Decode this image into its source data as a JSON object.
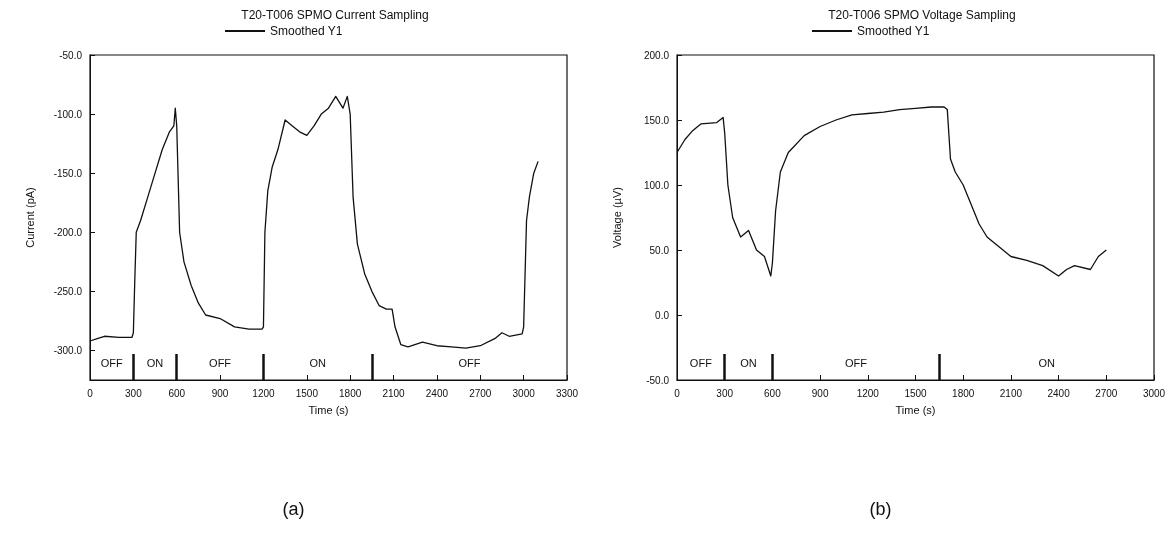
{
  "chart_data": [
    {
      "type": "line",
      "title": "T20-T006 SPMO Current Sampling",
      "xlabel": "Time (s)",
      "ylabel": "Current (pA)",
      "legend": "top",
      "grid": false,
      "marker": "none",
      "line_style": "solid",
      "xlim": [
        0,
        3300
      ],
      "xticks": [
        0,
        300,
        600,
        900,
        1200,
        1500,
        1800,
        2100,
        2400,
        2700,
        3000,
        3300
      ],
      "ylim": [
        -325,
        -50
      ],
      "yticks": [
        {
          "value": -50,
          "label": "-50.0"
        },
        {
          "value": -100,
          "label": "-100.0"
        },
        {
          "value": -150,
          "label": "-150.0"
        },
        {
          "value": -200,
          "label": "-200.0"
        },
        {
          "value": -250,
          "label": "-250.0"
        },
        {
          "value": -300,
          "label": "-300.0"
        }
      ],
      "series": [
        {
          "name": "Smoothed Y1",
          "color": "#111111",
          "x": [
            0,
            50,
            100,
            200,
            290,
            300,
            310,
            320,
            350,
            400,
            450,
            500,
            550,
            580,
            590,
            600,
            620,
            650,
            700,
            750,
            800,
            900,
            1000,
            1100,
            1190,
            1200,
            1210,
            1230,
            1260,
            1300,
            1350,
            1400,
            1450,
            1500,
            1550,
            1600,
            1650,
            1700,
            1750,
            1780,
            1800,
            1820,
            1850,
            1900,
            1950,
            2000,
            2050,
            2090,
            2110,
            2150,
            2200,
            2300,
            2400,
            2500,
            2600,
            2700,
            2800,
            2850,
            2900,
            2990,
            3000,
            3020,
            3040,
            3070,
            3100
          ],
          "values": [
            -292,
            -290,
            -288,
            -289,
            -289,
            -285,
            -240,
            -200,
            -190,
            -170,
            -150,
            -130,
            -115,
            -110,
            -95,
            -110,
            -200,
            -225,
            -245,
            -260,
            -270,
            -273,
            -280,
            -282,
            -282,
            -280,
            -200,
            -165,
            -145,
            -130,
            -105,
            -110,
            -115,
            -118,
            -110,
            -100,
            -95,
            -85,
            -95,
            -85,
            -100,
            -170,
            -210,
            -235,
            -250,
            -262,
            -265,
            -265,
            -280,
            -295,
            -297,
            -293,
            -296,
            -297,
            -298,
            -296,
            -290,
            -285,
            -288,
            -286,
            -280,
            -190,
            -170,
            -150,
            -140
          ]
        }
      ],
      "ref_lines": [
        {
          "axis": "x",
          "value": 300
        },
        {
          "axis": "x",
          "value": 600
        },
        {
          "axis": "x",
          "value": 1200
        },
        {
          "axis": "x",
          "value": 1950
        }
      ],
      "annotations": [
        "OFF",
        "ON",
        "OFF",
        "ON",
        "OFF",
        "(a)"
      ]
    },
    {
      "type": "line",
      "title": "T20-T006 SPMO Voltage Sampling",
      "xlabel": "Time (s)",
      "ylabel": "Voltage (µV)",
      "legend": "top",
      "grid": false,
      "marker": "none",
      "line_style": "solid",
      "xlim": [
        0,
        3000
      ],
      "xticks": [
        0,
        300,
        600,
        900,
        1200,
        1500,
        1800,
        2100,
        2400,
        2700,
        3000
      ],
      "ylim": [
        -50,
        200
      ],
      "yticks": [
        {
          "value": -50,
          "label": "-50.0"
        },
        {
          "value": 0,
          "label": "0.0"
        },
        {
          "value": 50,
          "label": "50.0"
        },
        {
          "value": 100,
          "label": "100.0"
        },
        {
          "value": 150,
          "label": "150.0"
        },
        {
          "value": 200,
          "label": "200.0"
        }
      ],
      "series": [
        {
          "name": "Smoothed Y1",
          "color": "#111111",
          "x": [
            0,
            50,
            100,
            150,
            250,
            290,
            300,
            320,
            350,
            400,
            450,
            500,
            550,
            590,
            600,
            620,
            650,
            700,
            800,
            900,
            1000,
            1100,
            1200,
            1300,
            1400,
            1500,
            1600,
            1680,
            1700,
            1720,
            1750,
            1800,
            1850,
            1900,
            1950,
            2000,
            2100,
            2200,
            2300,
            2400,
            2450,
            2500,
            2600,
            2650,
            2700
          ],
          "values": [
            125,
            135,
            142,
            147,
            148,
            152,
            140,
            100,
            75,
            60,
            65,
            50,
            45,
            30,
            40,
            80,
            110,
            125,
            138,
            145,
            150,
            154,
            155,
            156,
            158,
            159,
            160,
            160,
            158,
            120,
            110,
            100,
            85,
            70,
            60,
            55,
            45,
            42,
            38,
            30,
            35,
            38,
            35,
            45,
            50
          ]
        }
      ],
      "ref_lines": [
        {
          "axis": "x",
          "value": 300
        },
        {
          "axis": "x",
          "value": 600
        },
        {
          "axis": "x",
          "value": 1650
        }
      ],
      "annotations": [
        "OFF",
        "ON",
        "OFF",
        "ON",
        "(b)"
      ]
    }
  ]
}
